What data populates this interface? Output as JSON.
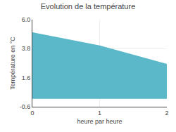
{
  "chart_data": {
    "type": "area",
    "title": "Evolution de la température",
    "xlabel": "heure par heure",
    "ylabel": "Température en °C",
    "x": [
      0,
      1,
      2
    ],
    "values": [
      5.0,
      4.0,
      2.6
    ],
    "color": "#5ab8c8",
    "xlim": [
      0,
      2
    ],
    "xticks": [
      0,
      1,
      2
    ],
    "ylim": [
      -0.6,
      6.0
    ],
    "yticks": [
      -0.6,
      1.6,
      3.8,
      {
        "value": 6.0,
        "label": "6.0"
      }
    ],
    "grid": true
  }
}
